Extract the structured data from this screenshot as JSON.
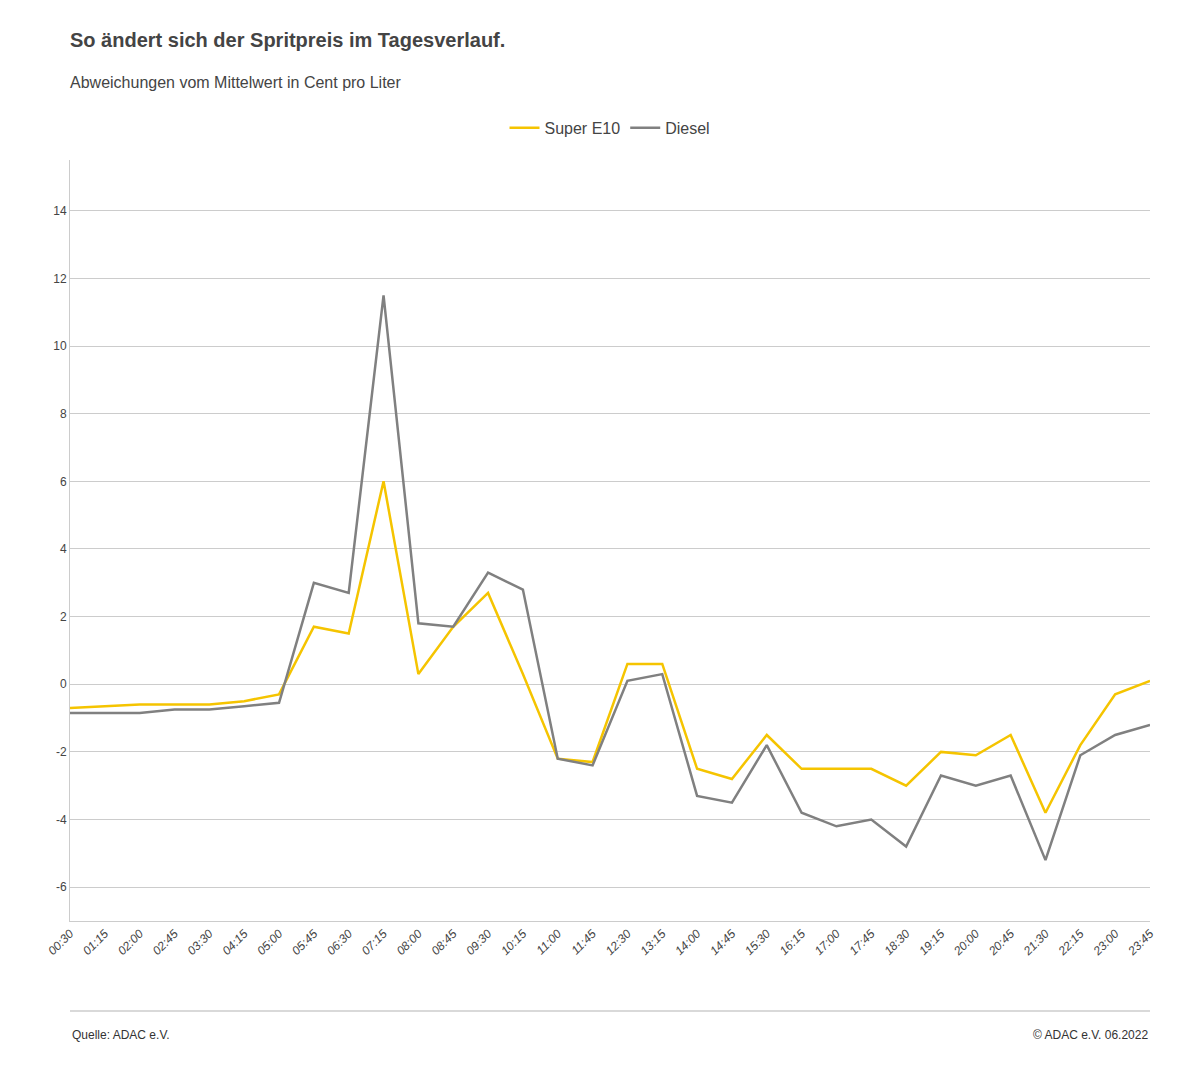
{
  "chart_data": {
    "type": "line",
    "title": "So ändert sich der Spritpreis im Tagesverlauf.",
    "subtitle": "Abweichungen vom Mittelwert in Cent pro Liter",
    "annotations": [
      "Quelle: ADAC e.V.",
      "© ADAC e.V. 06.2022"
    ],
    "categories": [
      "00:30",
      "01:15",
      "02:00",
      "02:45",
      "03:30",
      "04:15",
      "05:00",
      "05:45",
      "06:30",
      "07:15",
      "08:00",
      "08:45",
      "09:30",
      "10:15",
      "11:00",
      "11:45",
      "12:30",
      "13:15",
      "14:00",
      "14:45",
      "15:30",
      "16:15",
      "17:00",
      "17:45",
      "18:30",
      "19:15",
      "20:00",
      "20:45",
      "21:30",
      "22:15",
      "23:00",
      "23:45"
    ],
    "series": [
      {
        "name": "Super E10",
        "color": "#F5C400",
        "values": [
          -0.7,
          -0.65,
          -0.6,
          -0.6,
          -0.6,
          -0.5,
          -0.3,
          1.7,
          1.5,
          6.0,
          0.3,
          1.7,
          2.7,
          0.3,
          -2.2,
          -2.3,
          0.6,
          0.6,
          -2.5,
          -2.8,
          -1.5,
          -2.5,
          -2.5,
          -2.5,
          -3.0,
          -2.0,
          -2.1,
          -1.5,
          -3.8,
          -1.8,
          -0.3,
          0.1
        ]
      },
      {
        "name": "Diesel",
        "color": "#808080",
        "values": [
          -0.85,
          -0.85,
          -0.85,
          -0.75,
          -0.75,
          -0.65,
          -0.55,
          3.0,
          2.7,
          11.5,
          1.8,
          1.7,
          3.3,
          2.8,
          -2.2,
          -2.4,
          0.1,
          0.3,
          -3.3,
          -3.5,
          -1.8,
          -3.8,
          -4.2,
          -4.0,
          -4.8,
          -2.7,
          -3.0,
          -2.7,
          -5.2,
          -2.1,
          -1.5,
          -1.2
        ]
      }
    ],
    "ylim": [
      -7.0,
      15.5
    ],
    "yticks": [
      -6,
      -4,
      -2,
      0,
      2,
      4,
      6,
      8,
      10,
      12,
      14
    ],
    "grid": true,
    "legend": "top"
  }
}
